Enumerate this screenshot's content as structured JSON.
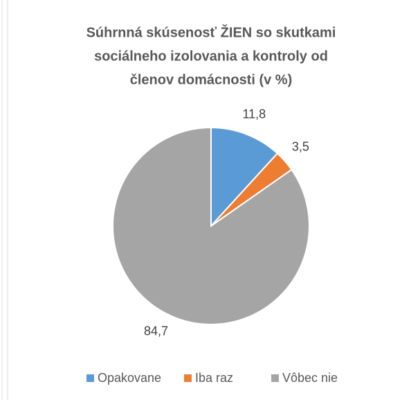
{
  "chart_data": {
    "type": "pie",
    "title": [
      "Súhrnná skúsenosť ŽIEN so skutkami",
      "sociálneho izolovania a kontroly od",
      "členov domácnosti (v %)"
    ],
    "categories": [
      "Opakovane",
      "Iba raz",
      "Vôbec nie"
    ],
    "values": [
      11.8,
      3.5,
      84.7
    ],
    "value_labels": [
      "11,8",
      "3,5",
      "84,7"
    ],
    "colors": [
      "#5b9bd5",
      "#ed7d31",
      "#a5a5a5"
    ],
    "legend": "bottom"
  }
}
